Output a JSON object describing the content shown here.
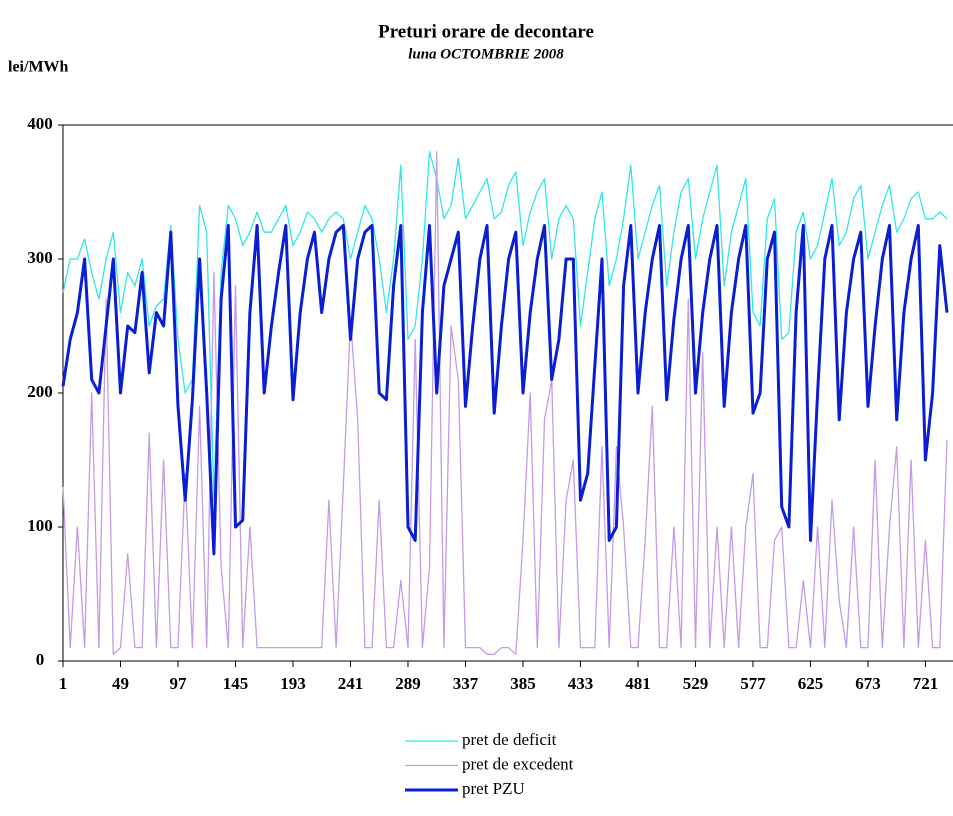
{
  "chart_data": {
    "type": "line",
    "title": "Preturi orare de decontare",
    "subtitle": "luna  OCTOMBRIE 2008",
    "y_label": "lei/MWh",
    "x": [
      1,
      7,
      13,
      19,
      25,
      31,
      37,
      43,
      49,
      55,
      61,
      67,
      73,
      79,
      85,
      91,
      97,
      103,
      109,
      115,
      121,
      127,
      133,
      139,
      145,
      151,
      157,
      163,
      169,
      175,
      181,
      187,
      193,
      199,
      205,
      211,
      217,
      223,
      229,
      235,
      241,
      247,
      253,
      259,
      265,
      271,
      277,
      283,
      289,
      295,
      301,
      307,
      313,
      319,
      325,
      331,
      337,
      343,
      349,
      355,
      361,
      367,
      373,
      379,
      385,
      391,
      397,
      403,
      409,
      415,
      421,
      427,
      433,
      439,
      445,
      451,
      457,
      463,
      469,
      475,
      481,
      487,
      493,
      499,
      505,
      511,
      517,
      523,
      529,
      535,
      541,
      547,
      553,
      559,
      565,
      571,
      577,
      583,
      589,
      595,
      601,
      607,
      613,
      619,
      625,
      631,
      637,
      643,
      649,
      655,
      661,
      667,
      673,
      679,
      685,
      691,
      697,
      703,
      709,
      715,
      721,
      727,
      733,
      739
    ],
    "series": [
      {
        "name": "pret de deficit",
        "color": "#33e6e6",
        "width": 1.3,
        "values": [
          275,
          300,
          300,
          315,
          290,
          270,
          300,
          320,
          260,
          290,
          280,
          300,
          250,
          265,
          270,
          325,
          240,
          200,
          210,
          340,
          320,
          120,
          290,
          340,
          330,
          310,
          320,
          335,
          320,
          320,
          330,
          340,
          310,
          320,
          335,
          330,
          320,
          330,
          335,
          330,
          300,
          320,
          340,
          330,
          300,
          260,
          300,
          370,
          240,
          250,
          300,
          380,
          360,
          330,
          340,
          375,
          330,
          340,
          350,
          360,
          330,
          335,
          355,
          365,
          310,
          335,
          350,
          360,
          300,
          330,
          340,
          330,
          250,
          290,
          330,
          350,
          280,
          300,
          330,
          370,
          300,
          320,
          340,
          355,
          280,
          320,
          350,
          360,
          300,
          330,
          350,
          370,
          280,
          320,
          340,
          360,
          260,
          250,
          330,
          345,
          240,
          245,
          320,
          335,
          300,
          310,
          335,
          360,
          310,
          320,
          345,
          355,
          300,
          320,
          340,
          355,
          320,
          330,
          345,
          350,
          330,
          330,
          335,
          330
        ]
      },
      {
        "name": "pret de excedent",
        "color": "#c39be6",
        "width": 1.3,
        "values": [
          130,
          10,
          100,
          10,
          200,
          10,
          270,
          5,
          10,
          80,
          10,
          10,
          170,
          10,
          150,
          10,
          10,
          140,
          10,
          190,
          10,
          290,
          70,
          10,
          280,
          10,
          100,
          10,
          10,
          10,
          10,
          10,
          10,
          10,
          10,
          10,
          10,
          120,
          10,
          130,
          255,
          180,
          10,
          10,
          120,
          10,
          10,
          60,
          10,
          240,
          10,
          70,
          380,
          10,
          250,
          210,
          10,
          10,
          10,
          5,
          5,
          10,
          10,
          5,
          90,
          200,
          10,
          180,
          210,
          10,
          120,
          150,
          10,
          10,
          10,
          160,
          10,
          160,
          100,
          10,
          10,
          90,
          190,
          10,
          10,
          100,
          10,
          270,
          10,
          230,
          10,
          100,
          10,
          100,
          10,
          100,
          140,
          10,
          10,
          90,
          100,
          10,
          10,
          60,
          10,
          100,
          10,
          120,
          45,
          10,
          100,
          10,
          10,
          150,
          10,
          100,
          160,
          10,
          150,
          10,
          90,
          10,
          10,
          165
        ]
      },
      {
        "name": "pret PZU",
        "color": "#0a1ed2",
        "width": 3,
        "values": [
          205,
          240,
          260,
          300,
          210,
          200,
          250,
          300,
          200,
          250,
          245,
          290,
          215,
          260,
          250,
          320,
          190,
          120,
          195,
          300,
          200,
          80,
          270,
          325,
          100,
          105,
          260,
          325,
          200,
          250,
          290,
          325,
          195,
          260,
          300,
          320,
          260,
          300,
          320,
          325,
          240,
          300,
          320,
          325,
          200,
          195,
          280,
          325,
          100,
          90,
          260,
          325,
          200,
          280,
          300,
          320,
          190,
          250,
          300,
          325,
          185,
          250,
          300,
          320,
          200,
          260,
          300,
          325,
          210,
          240,
          300,
          300,
          120,
          140,
          220,
          300,
          90,
          100,
          280,
          325,
          200,
          260,
          300,
          325,
          195,
          255,
          300,
          325,
          200,
          260,
          300,
          325,
          190,
          260,
          300,
          325,
          185,
          200,
          300,
          320,
          115,
          100,
          260,
          325,
          90,
          200,
          300,
          325,
          180,
          260,
          300,
          320,
          190,
          250,
          300,
          325,
          180,
          260,
          300,
          325,
          150,
          200,
          310,
          260
        ]
      }
    ],
    "xlim": [
      1,
      744
    ],
    "xticks": [
      1,
      49,
      97,
      145,
      193,
      241,
      289,
      337,
      385,
      433,
      481,
      529,
      577,
      625,
      673,
      721
    ],
    "ylim": [
      0,
      400
    ],
    "yticks": [
      0,
      100,
      200,
      300,
      400
    ],
    "grid": false
  }
}
